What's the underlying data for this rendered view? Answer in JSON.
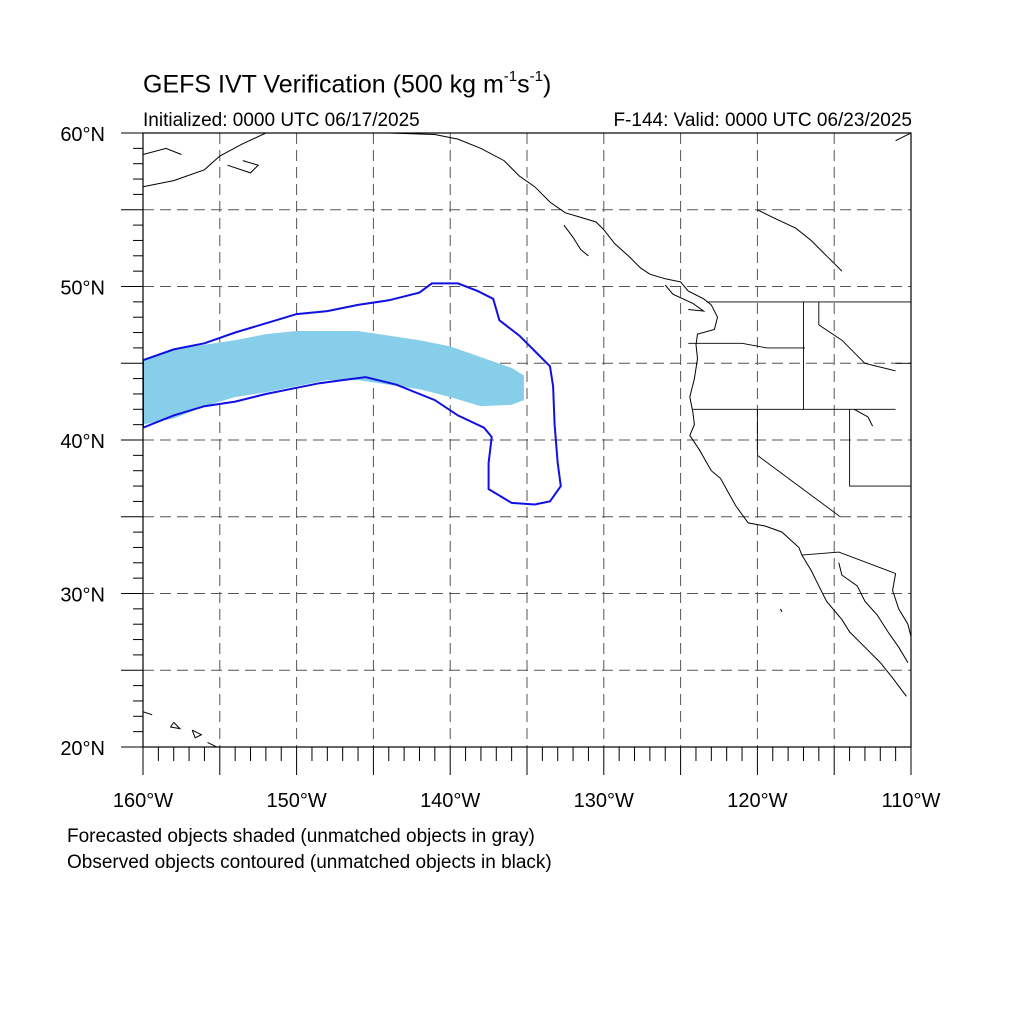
{
  "title": {
    "main_prefix": "GEFS IVT Verification (500 kg m",
    "exp1": "-1",
    "main_mid": "s",
    "exp2": "-1",
    "main_suffix": ")",
    "initialized": "Initialized: 0000 UTC 06/17/2025",
    "valid": "F-144: Valid: 0000 UTC 06/23/2025"
  },
  "captions": {
    "line1": "Forecasted objects shaded (unmatched objects in gray)",
    "line2": "Observed objects contoured (unmatched objects in black)"
  },
  "map": {
    "lat_range": [
      20,
      60
    ],
    "lon_range": [
      -160,
      -110
    ],
    "lat_labels": [
      "60°N",
      "50°N",
      "40°N",
      "30°N",
      "20°N"
    ],
    "lon_labels": [
      "160°W",
      "150°W",
      "140°W",
      "130°W",
      "120°W",
      "110°W"
    ],
    "grid_lines": "dashed every 5°",
    "colors": {
      "forecast_fill": "#87ceeb",
      "observed_contour": "#1010e0",
      "coastline": "#000000",
      "grid": "#555555"
    },
    "forecast_object": [
      [
        -160,
        45.2
      ],
      [
        -159,
        45.6
      ],
      [
        -158,
        45.9
      ],
      [
        -156,
        46.2
      ],
      [
        -154,
        46.5
      ],
      [
        -152,
        46.9
      ],
      [
        -150,
        47.1
      ],
      [
        -146,
        47.1
      ],
      [
        -144,
        46.8
      ],
      [
        -142,
        46.5
      ],
      [
        -140,
        46.1
      ],
      [
        -138,
        45.4
      ],
      [
        -136,
        44.7
      ],
      [
        -135.2,
        44.2
      ],
      [
        -135.2,
        42.6
      ],
      [
        -136,
        42.3
      ],
      [
        -138,
        42.2
      ],
      [
        -140,
        42.8
      ],
      [
        -142,
        43.3
      ],
      [
        -144,
        43.6
      ],
      [
        -146,
        43.9
      ],
      [
        -148,
        43.9
      ],
      [
        -150,
        43.5
      ],
      [
        -152,
        43.1
      ],
      [
        -154,
        42.8
      ],
      [
        -156,
        42.2
      ],
      [
        -158,
        41.4
      ],
      [
        -160,
        41.0
      ]
    ],
    "observed_object": [
      [
        -160,
        45.2
      ],
      [
        -158,
        45.9
      ],
      [
        -156,
        46.3
      ],
      [
        -154,
        47.0
      ],
      [
        -152,
        47.6
      ],
      [
        -150,
        48.2
      ],
      [
        -148,
        48.4
      ],
      [
        -146,
        48.8
      ],
      [
        -144,
        49.1
      ],
      [
        -142,
        49.6
      ],
      [
        -141.2,
        50.2
      ],
      [
        -139.5,
        50.2
      ],
      [
        -138.2,
        49.7
      ],
      [
        -137.2,
        49.2
      ],
      [
        -136.8,
        47.8
      ],
      [
        -135.5,
        46.8
      ],
      [
        -134.5,
        45.8
      ],
      [
        -133.5,
        44.8
      ],
      [
        -133.3,
        43.5
      ],
      [
        -133.2,
        41.0
      ],
      [
        -133.0,
        38.5
      ],
      [
        -132.8,
        37.0
      ],
      [
        -133.5,
        36.0
      ],
      [
        -134.5,
        35.8
      ],
      [
        -136.0,
        35.9
      ],
      [
        -137.5,
        36.8
      ],
      [
        -137.5,
        38.5
      ],
      [
        -137.3,
        40.2
      ],
      [
        -137.8,
        40.8
      ],
      [
        -139.5,
        41.6
      ],
      [
        -141,
        42.6
      ],
      [
        -143.5,
        43.6
      ],
      [
        -145.5,
        44.1
      ],
      [
        -147,
        43.9
      ],
      [
        -148.5,
        43.7
      ],
      [
        -150,
        43.4
      ],
      [
        -152,
        43.0
      ],
      [
        -154,
        42.5
      ],
      [
        -156,
        42.2
      ],
      [
        -158,
        41.6
      ],
      [
        -160,
        40.8
      ]
    ],
    "state_boundaries": [
      [
        [
          -123.3,
          49.0
        ],
        [
          -110,
          49.0
        ]
      ],
      [
        [
          -124.5,
          46.3
        ],
        [
          -121,
          46.3
        ],
        [
          -119.4,
          46.0
        ],
        [
          -116.9,
          46.0
        ]
      ],
      [
        [
          -124.2,
          42.0
        ],
        [
          -111.0,
          42.0
        ]
      ],
      [
        [
          -120.0,
          42.0
        ],
        [
          -120.0,
          39.0
        ],
        [
          -114.6,
          35.0
        ]
      ],
      [
        [
          -117.0,
          49.0
        ],
        [
          -117.0,
          42.0
        ]
      ],
      [
        [
          -116.0,
          49.0
        ],
        [
          -116.0,
          47.5
        ],
        [
          -114.5,
          46.5
        ],
        [
          -113.0,
          45.0
        ],
        [
          -111.0,
          44.5
        ]
      ],
      [
        [
          -114.0,
          42.0
        ],
        [
          -114.0,
          37.0
        ],
        [
          -110,
          37.0
        ]
      ],
      [
        [
          -117.1,
          32.5
        ],
        [
          -114.7,
          32.7
        ],
        [
          -111,
          31.3
        ]
      ],
      [
        [
          -111.0,
          45.0
        ],
        [
          -110,
          45.0
        ]
      ]
    ],
    "coastlines": [
      [
        [
          -160,
          56.5
        ],
        [
          -158,
          56.9
        ],
        [
          -156,
          57.6
        ],
        [
          -155,
          58.5
        ],
        [
          -153.5,
          59.3
        ],
        [
          -152,
          60.0
        ]
      ],
      [
        [
          -160,
          58.6
        ],
        [
          -158.5,
          59.0
        ],
        [
          -157.5,
          58.6
        ]
      ],
      [
        [
          -154.5,
          57.9
        ],
        [
          -153,
          57.4
        ],
        [
          -152.5,
          57.9
        ],
        [
          -153.5,
          58.2
        ]
      ],
      [
        [
          -144,
          60
        ],
        [
          -141,
          59.9
        ],
        [
          -139.5,
          59.6
        ],
        [
          -138,
          59.0
        ],
        [
          -136.5,
          58.2
        ],
        [
          -135.5,
          57.2
        ],
        [
          -134.5,
          56.5
        ],
        [
          -133.5,
          55.5
        ],
        [
          -132.5,
          54.8
        ],
        [
          -131.5,
          54.5
        ],
        [
          -130.5,
          54.2
        ],
        [
          -130,
          53.7
        ],
        [
          -129.3,
          52.8
        ],
        [
          -128.3,
          51.9
        ],
        [
          -127.6,
          51.2
        ],
        [
          -127,
          50.8
        ],
        [
          -126,
          50.5
        ],
        [
          -125,
          50.3
        ],
        [
          -124.5,
          49.7
        ],
        [
          -123.5,
          49.2
        ],
        [
          -123,
          48.8
        ],
        [
          -122.6,
          48.0
        ],
        [
          -122.8,
          47.2
        ],
        [
          -123.9,
          46.9
        ],
        [
          -124.0,
          46.2
        ],
        [
          -123.9,
          45.3
        ],
        [
          -124.1,
          44.0
        ],
        [
          -124.4,
          42.8
        ],
        [
          -124.2,
          41.8
        ],
        [
          -124.1,
          41.0
        ],
        [
          -124.4,
          40.3
        ],
        [
          -123.8,
          39.4
        ],
        [
          -123.0,
          38.0
        ],
        [
          -122.4,
          37.5
        ],
        [
          -121.9,
          36.6
        ],
        [
          -121.4,
          35.7
        ],
        [
          -120.6,
          34.6
        ],
        [
          -119.5,
          34.4
        ],
        [
          -118.4,
          34.0
        ],
        [
          -117.3,
          33.0
        ],
        [
          -117.1,
          32.5
        ],
        [
          -116.5,
          31.5
        ],
        [
          -116.0,
          30.5
        ],
        [
          -115.5,
          29.5
        ],
        [
          -114.5,
          28.3
        ],
        [
          -114.0,
          27.5
        ],
        [
          -113.0,
          26.5
        ],
        [
          -112.0,
          25.5
        ],
        [
          -111.2,
          24.5
        ],
        [
          -110.3,
          23.3
        ]
      ],
      [
        [
          -114.7,
          32.0
        ],
        [
          -114.5,
          31.2
        ],
        [
          -113.5,
          30.5
        ],
        [
          -113.0,
          29.5
        ],
        [
          -112.2,
          28.6
        ],
        [
          -111.5,
          27.5
        ],
        [
          -110.8,
          26.5
        ],
        [
          -110.2,
          25.5
        ]
      ],
      [
        [
          -111.0,
          31.3
        ],
        [
          -111.2,
          30.2
        ],
        [
          -110.8,
          29.0
        ],
        [
          -110.2,
          28.0
        ],
        [
          -110,
          27.2
        ]
      ],
      [
        [
          -126,
          50.1
        ],
        [
          -125.5,
          49.5
        ],
        [
          -124.2,
          48.9
        ],
        [
          -123.5,
          48.4
        ],
        [
          -124.5,
          48.5
        ]
      ],
      [
        [
          -132.6,
          54.0
        ],
        [
          -132.0,
          53.2
        ],
        [
          -131.5,
          52.4
        ],
        [
          -131.0,
          52.0
        ]
      ],
      [
        [
          -120,
          55.0
        ],
        [
          -119,
          54.5
        ],
        [
          -117.5,
          53.8
        ],
        [
          -116.5,
          53.0
        ],
        [
          -115.5,
          52.0
        ],
        [
          -114.5,
          51.0
        ]
      ],
      [
        [
          -111,
          59.5
        ],
        [
          -110,
          60.0
        ]
      ],
      [
        [
          -160,
          22.3
        ],
        [
          -159.4,
          22.1
        ]
      ],
      [
        [
          -158.0,
          21.6
        ],
        [
          -157.6,
          21.2
        ],
        [
          -158.2,
          21.3
        ],
        [
          -158.0,
          21.6
        ]
      ],
      [
        [
          -156.8,
          21.1
        ],
        [
          -156.2,
          20.8
        ],
        [
          -156.6,
          20.6
        ],
        [
          -156.8,
          21.1
        ]
      ],
      [
        [
          -155.8,
          20.3
        ],
        [
          -155.0,
          19.9
        ]
      ],
      [
        [
          -113.7,
          42.0
        ],
        [
          -112.8,
          41.5
        ],
        [
          -112.5,
          40.9
        ]
      ],
      [
        [
          -118.5,
          29.0
        ],
        [
          -118.4,
          28.8
        ]
      ]
    ]
  }
}
